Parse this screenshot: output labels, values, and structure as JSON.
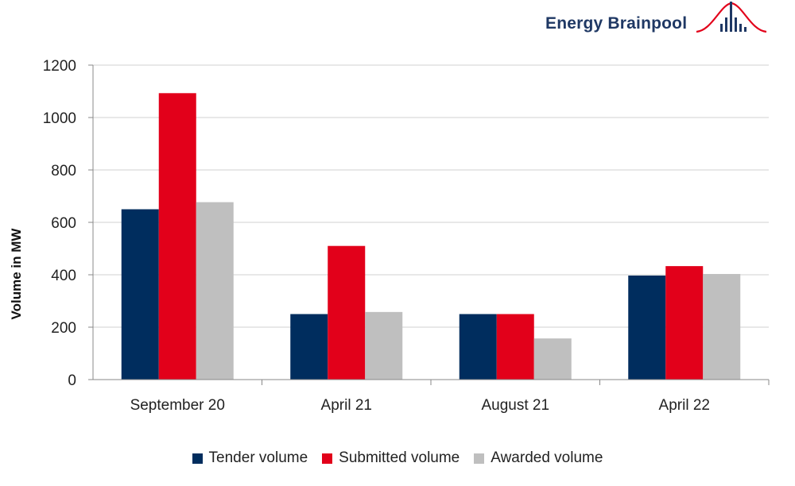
{
  "brand": {
    "name": "Energy Brainpool",
    "logo_icon": "bell-curve-bars-logo"
  },
  "chart_data": {
    "type": "bar",
    "title": "",
    "xlabel": "",
    "ylabel": "Volume in MW",
    "ylim": [
      0,
      1200
    ],
    "yticks": [
      0,
      200,
      400,
      600,
      800,
      1000,
      1200
    ],
    "grid": true,
    "legend_position": "bottom",
    "categories": [
      "September 20",
      "April 21",
      "August 21",
      "April 22"
    ],
    "series": [
      {
        "name": "Tender volume",
        "color": "#002d5e",
        "values": [
          650,
          250,
          250,
          397
        ]
      },
      {
        "name": "Submitted volume",
        "color": "#e2001a",
        "values": [
          1093,
          510,
          250,
          433
        ]
      },
      {
        "name": "Awarded volume",
        "color": "#bfbfbf",
        "values": [
          677,
          258,
          157,
          403
        ]
      }
    ]
  }
}
